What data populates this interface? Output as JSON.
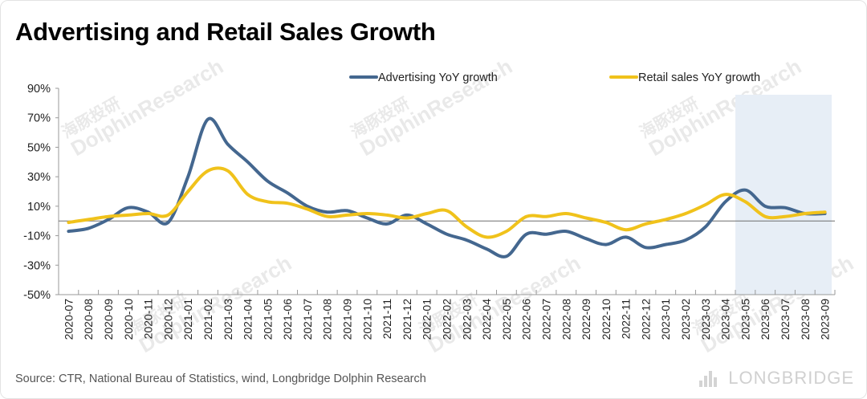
{
  "title": "Advertising and Retail Sales Growth",
  "source": "Source: CTR, National Bureau of Statistics, wind, Longbridge Dolphin Research",
  "watermark": {
    "cn": "海豚投研",
    "en": "DolphinResearch"
  },
  "brand": "LONGBRIDGE",
  "colors": {
    "advertising": "#44678f",
    "retail": "#f0c21b",
    "shade": "#e7eef6"
  },
  "chart_data": {
    "type": "line",
    "title": "Advertising and Retail Sales Growth",
    "xlabel": "",
    "ylabel": "",
    "ylim": [
      -50,
      90
    ],
    "yticks": [
      -50,
      -30,
      -10,
      10,
      30,
      50,
      70,
      90
    ],
    "ytick_labels": [
      "-50%",
      "-30%",
      "-10%",
      "10%",
      "30%",
      "50%",
      "70%",
      "90%"
    ],
    "legend_position": "top",
    "grid": false,
    "categories": [
      "2020-07",
      "2020-08",
      "2020-09",
      "2020-10",
      "2020-11",
      "2020-12",
      "2021-01",
      "2021-02",
      "2021-03",
      "2021-04",
      "2021-05",
      "2021-06",
      "2021-07",
      "2021-08",
      "2021-09",
      "2021-10",
      "2021-11",
      "2021-12",
      "2022-01",
      "2022-02",
      "2022-03",
      "2022-04",
      "2022-05",
      "2022-06",
      "2022-07",
      "2022-08",
      "2022-09",
      "2022-10",
      "2022-11",
      "2022-12",
      "2023-01",
      "2023-02",
      "2023-03",
      "2023-04",
      "2023-05",
      "2023-06",
      "2023-07",
      "2023-08",
      "2023-09"
    ],
    "shaded_range": [
      "2023-05",
      "2023-09"
    ],
    "series": [
      {
        "name": "Advertising YoY growth",
        "color": "#44678f",
        "values": [
          -7,
          -5,
          1,
          9,
          6,
          -1,
          30,
          69,
          52,
          40,
          27,
          19,
          10,
          6,
          7,
          2,
          -2,
          4,
          -2,
          -9,
          -13,
          -19,
          -24,
          -9,
          -9,
          -7,
          -12,
          -16,
          -11,
          -18,
          -16,
          -13,
          -4,
          13,
          21,
          10,
          9,
          5,
          5
        ]
      },
      {
        "name": "Retail sales YoY growth",
        "color": "#f0c21b",
        "values": [
          -1,
          1,
          3,
          4,
          5,
          4,
          20,
          34,
          34,
          18,
          13,
          12,
          8,
          3,
          4,
          5,
          4,
          2,
          5,
          7,
          -4,
          -11,
          -7,
          3,
          3,
          5,
          2,
          -1,
          -6,
          -2,
          1,
          5,
          11,
          18,
          13,
          3,
          3,
          5,
          6
        ]
      }
    ]
  }
}
